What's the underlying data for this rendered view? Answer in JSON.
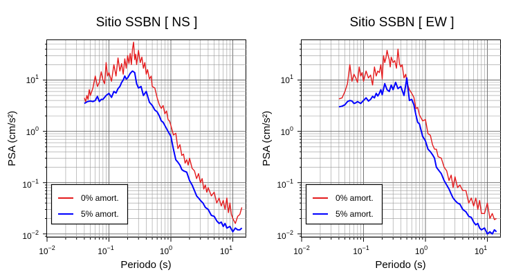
{
  "figure": {
    "panels": [
      {
        "title": "Sitio SSBN [ NS ]",
        "xlabel": "Periodo (s)",
        "ylabel": "PSA (cm/s²)",
        "legend": [
          "0% amort.",
          "5% amort."
        ]
      },
      {
        "title": "Sitio SSBN [ EW ]",
        "xlabel": "Periodo (s)",
        "ylabel": "PSA (cm/s²)",
        "legend": [
          "0% amort.",
          "5% amort."
        ]
      }
    ],
    "tick_labels": {
      "x": [
        "10",
        "−2",
        "10",
        "−1",
        "10",
        "0",
        "10",
        "1"
      ],
      "y": [
        "10",
        "−2",
        "10",
        "−1",
        "10",
        "0",
        "10",
        "1"
      ]
    }
  },
  "chart_data": [
    {
      "type": "line",
      "title": "Sitio SSBN [ NS ]",
      "xlabel": "Periodo (s)",
      "ylabel": "PSA (cm/s²)",
      "xscale": "log",
      "yscale": "log",
      "xlim": [
        0.01,
        16.5
      ],
      "ylim": [
        0.0085,
        60
      ],
      "grid": true,
      "legend_position": "bottom-left",
      "series": [
        {
          "name": "0% amort.",
          "color": "#e41a1c",
          "x": [
            0.04,
            0.042,
            0.044,
            0.046,
            0.048,
            0.05,
            0.055,
            0.06,
            0.065,
            0.07,
            0.075,
            0.08,
            0.085,
            0.09,
            0.095,
            0.1,
            0.11,
            0.12,
            0.13,
            0.14,
            0.15,
            0.16,
            0.17,
            0.18,
            0.19,
            0.2,
            0.21,
            0.22,
            0.23,
            0.24,
            0.25,
            0.26,
            0.27,
            0.28,
            0.3,
            0.32,
            0.34,
            0.36,
            0.38,
            0.4,
            0.42,
            0.45,
            0.48,
            0.5,
            0.55,
            0.6,
            0.65,
            0.7,
            0.75,
            0.8,
            0.85,
            0.9,
            0.95,
            1.0,
            1.1,
            1.2,
            1.3,
            1.4,
            1.5,
            1.6,
            1.7,
            1.8,
            1.9,
            2.0,
            2.2,
            2.4,
            2.6,
            2.8,
            3.0,
            3.2,
            3.4,
            3.6,
            3.8,
            4.0,
            4.5,
            5.0,
            5.5,
            6.0,
            6.5,
            7.0,
            7.5,
            8.0,
            8.5,
            9.0,
            9.5,
            10.0,
            11.0,
            12.0,
            13.0,
            14.0
          ],
          "y": [
            4.5,
            3.8,
            5.0,
            4.2,
            6.5,
            5.0,
            7.0,
            12.0,
            7.5,
            9.0,
            14.5,
            10.0,
            8.5,
            22.0,
            12.0,
            14.0,
            9.5,
            20.0,
            12.0,
            27.0,
            15.0,
            21.0,
            13.0,
            26.0,
            17.0,
            30.0,
            21.0,
            33.0,
            20.0,
            40.0,
            55.0,
            25.0,
            32.0,
            20.0,
            38.0,
            22.0,
            28.0,
            17.0,
            22.0,
            13.0,
            16.0,
            10.5,
            12.0,
            7.5,
            7.0,
            4.5,
            3.3,
            2.8,
            3.2,
            2.2,
            2.5,
            1.7,
            1.6,
            1.3,
            0.85,
            0.92,
            0.46,
            0.55,
            0.34,
            0.36,
            0.24,
            0.28,
            0.22,
            0.3,
            0.19,
            0.17,
            0.12,
            0.15,
            0.1,
            0.12,
            0.075,
            0.09,
            0.065,
            0.08,
            0.055,
            0.065,
            0.04,
            0.05,
            0.035,
            0.045,
            0.03,
            0.05,
            0.026,
            0.04,
            0.024,
            0.02,
            0.016,
            0.022,
            0.024,
            0.033
          ]
        },
        {
          "name": "5% amort.",
          "color": "#0000ff",
          "x": [
            0.04,
            0.045,
            0.05,
            0.055,
            0.06,
            0.065,
            0.07,
            0.075,
            0.08,
            0.09,
            0.1,
            0.11,
            0.12,
            0.13,
            0.14,
            0.15,
            0.16,
            0.17,
            0.18,
            0.19,
            0.2,
            0.22,
            0.24,
            0.26,
            0.28,
            0.3,
            0.33,
            0.36,
            0.4,
            0.45,
            0.5,
            0.55,
            0.6,
            0.65,
            0.7,
            0.75,
            0.8,
            0.9,
            1.0,
            1.1,
            1.2,
            1.3,
            1.4,
            1.5,
            1.6,
            1.8,
            2.0,
            2.2,
            2.4,
            2.6,
            2.8,
            3.0,
            3.3,
            3.6,
            4.0,
            4.5,
            5.0,
            5.5,
            6.0,
            6.5,
            7.0,
            7.5,
            8.0,
            9.0,
            10.0,
            11.0,
            12.0,
            13.0,
            14.0
          ],
          "y": [
            3.5,
            3.8,
            3.9,
            3.8,
            4.0,
            4.8,
            3.8,
            4.2,
            4.2,
            5.0,
            5.5,
            4.6,
            6.0,
            5.6,
            6.8,
            7.5,
            9.0,
            10.0,
            12.0,
            10.5,
            11.0,
            13.5,
            15.0,
            14.0,
            8.5,
            7.0,
            7.5,
            5.0,
            6.0,
            3.7,
            3.2,
            2.6,
            2.4,
            2.0,
            1.6,
            1.5,
            1.3,
            1.0,
            0.8,
            0.45,
            0.28,
            0.25,
            0.22,
            0.18,
            0.17,
            0.16,
            0.11,
            0.09,
            0.07,
            0.055,
            0.05,
            0.045,
            0.04,
            0.033,
            0.03,
            0.023,
            0.022,
            0.018,
            0.016,
            0.017,
            0.014,
            0.016,
            0.013,
            0.014,
            0.011,
            0.013,
            0.012,
            0.012,
            0.013
          ]
        }
      ]
    },
    {
      "type": "line",
      "title": "Sitio SSBN [ EW ]",
      "xlabel": "Periodo (s)",
      "ylabel": "PSA (cm/s²)",
      "xscale": "log",
      "yscale": "log",
      "xlim": [
        0.01,
        16.5
      ],
      "ylim": [
        0.0085,
        60
      ],
      "grid": true,
      "legend_position": "bottom-left",
      "series": [
        {
          "name": "0% amort.",
          "color": "#e41a1c",
          "x": [
            0.04,
            0.045,
            0.05,
            0.055,
            0.06,
            0.065,
            0.07,
            0.075,
            0.08,
            0.085,
            0.09,
            0.095,
            0.1,
            0.11,
            0.12,
            0.13,
            0.14,
            0.15,
            0.16,
            0.17,
            0.18,
            0.19,
            0.2,
            0.21,
            0.22,
            0.23,
            0.24,
            0.25,
            0.26,
            0.27,
            0.28,
            0.3,
            0.32,
            0.34,
            0.36,
            0.38,
            0.4,
            0.42,
            0.45,
            0.48,
            0.5,
            0.55,
            0.6,
            0.65,
            0.7,
            0.75,
            0.8,
            0.9,
            1.0,
            1.1,
            1.2,
            1.3,
            1.4,
            1.5,
            1.6,
            1.8,
            2.0,
            2.2,
            2.4,
            2.6,
            2.8,
            3.0,
            3.3,
            3.6,
            4.0,
            4.5,
            5.0,
            5.5,
            6.0,
            6.5,
            7.0,
            7.5,
            8.0,
            9.0,
            10.0,
            11.0,
            12.0,
            13.0,
            14.0
          ],
          "y": [
            4.3,
            4.5,
            6.0,
            8.5,
            20.0,
            9.5,
            13.0,
            11.0,
            9.0,
            18.0,
            12.0,
            14.0,
            9.5,
            15.0,
            11.0,
            12.5,
            8.0,
            18.0,
            12.0,
            15.0,
            14.0,
            20.0,
            10.5,
            30.0,
            22.0,
            27.0,
            38.0,
            30.0,
            25.0,
            18.0,
            28.0,
            22.0,
            24.0,
            17.0,
            40.0,
            21.0,
            18.0,
            20.0,
            11.0,
            13.0,
            9.0,
            6.5,
            5.5,
            4.6,
            2.8,
            2.9,
            2.1,
            1.6,
            1.7,
            0.9,
            0.84,
            0.55,
            0.45,
            0.45,
            0.32,
            0.3,
            0.2,
            0.17,
            0.11,
            0.14,
            0.08,
            0.13,
            0.08,
            0.09,
            0.07,
            0.07,
            0.04,
            0.05,
            0.035,
            0.05,
            0.03,
            0.045,
            0.025,
            0.025,
            0.04,
            0.02,
            0.025,
            0.019,
            0.02
          ]
        },
        {
          "name": "5% amort.",
          "color": "#0000ff",
          "x": [
            0.04,
            0.045,
            0.05,
            0.055,
            0.06,
            0.065,
            0.07,
            0.075,
            0.08,
            0.09,
            0.1,
            0.11,
            0.12,
            0.13,
            0.14,
            0.15,
            0.16,
            0.17,
            0.18,
            0.19,
            0.2,
            0.22,
            0.24,
            0.26,
            0.28,
            0.3,
            0.33,
            0.36,
            0.4,
            0.45,
            0.5,
            0.55,
            0.6,
            0.65,
            0.7,
            0.75,
            0.8,
            0.9,
            1.0,
            1.1,
            1.2,
            1.3,
            1.4,
            1.5,
            1.6,
            1.8,
            2.0,
            2.2,
            2.4,
            2.6,
            2.8,
            3.0,
            3.3,
            3.6,
            4.0,
            4.5,
            5.0,
            5.5,
            6.0,
            6.5,
            7.0,
            7.5,
            8.0,
            9.0,
            10.0,
            11.0,
            12.0,
            13.0,
            14.0
          ],
          "y": [
            3.0,
            3.1,
            3.3,
            3.8,
            4.0,
            3.9,
            3.5,
            3.6,
            3.8,
            3.5,
            4.0,
            4.5,
            3.9,
            4.2,
            4.8,
            4.5,
            5.5,
            4.9,
            5.5,
            6.5,
            5.2,
            8.5,
            6.5,
            6.0,
            8.0,
            6.5,
            9.0,
            6.8,
            7.5,
            5.0,
            11.0,
            4.0,
            4.2,
            3.3,
            2.1,
            1.5,
            1.4,
            0.8,
            0.65,
            0.45,
            0.4,
            0.35,
            0.3,
            0.2,
            0.18,
            0.15,
            0.11,
            0.09,
            0.075,
            0.06,
            0.05,
            0.045,
            0.04,
            0.038,
            0.03,
            0.027,
            0.022,
            0.021,
            0.017,
            0.015,
            0.016,
            0.013,
            0.012,
            0.013,
            0.01,
            0.011,
            0.01,
            0.012,
            0.011
          ]
        }
      ]
    }
  ]
}
